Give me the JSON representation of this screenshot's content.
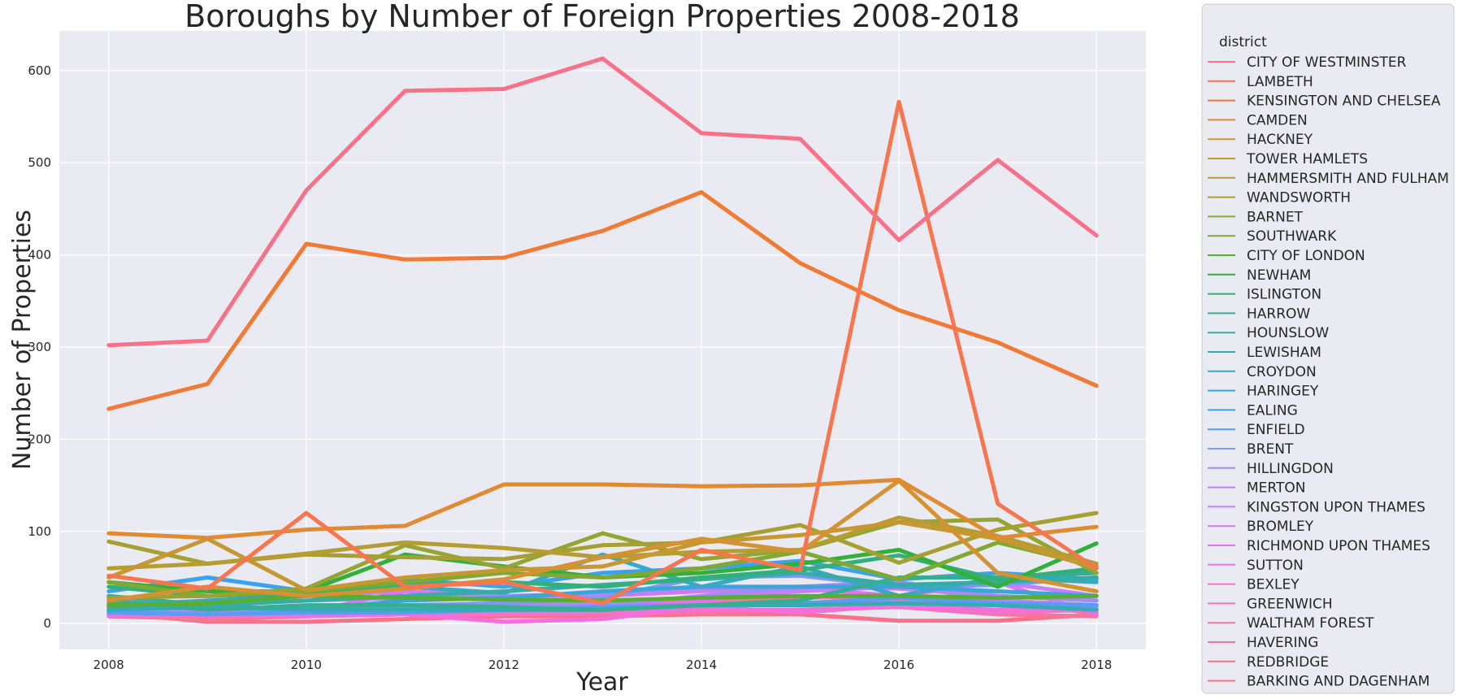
{
  "chart_data": {
    "type": "line",
    "title": "Boroughs by Number of Foreign Properties 2008-2018",
    "xlabel": "Year",
    "ylabel": "Number of Properties",
    "x": [
      2008,
      2009,
      2010,
      2011,
      2012,
      2013,
      2014,
      2015,
      2016,
      2017,
      2018
    ],
    "xlim": [
      2007.5,
      2018.5
    ],
    "ylim": [
      -28,
      643
    ],
    "xticks": [
      2008,
      2010,
      2012,
      2014,
      2016,
      2018
    ],
    "yticks": [
      0,
      100,
      200,
      300,
      400,
      500,
      600
    ],
    "grid": true,
    "legend": {
      "title": "district",
      "placement": "outside-right"
    },
    "series": [
      {
        "name": "CITY OF WESTMINSTER",
        "color": "#f77189",
        "values": [
          302,
          307,
          470,
          578,
          580,
          613,
          532,
          526,
          416,
          503,
          421
        ]
      },
      {
        "name": "LAMBETH",
        "color": "#f7754f",
        "values": [
          52,
          38,
          120,
          40,
          45,
          22,
          80,
          58,
          566,
          130,
          60
        ]
      },
      {
        "name": "KENSINGTON AND CHELSEA",
        "color": "#f17a36",
        "values": [
          233,
          260,
          412,
          395,
          397,
          426,
          468,
          391,
          340,
          305,
          258
        ]
      },
      {
        "name": "CAMDEN",
        "color": "#e08b31",
        "values": [
          98,
          93,
          102,
          106,
          151,
          151,
          149,
          150,
          156,
          93,
          105
        ]
      },
      {
        "name": "HACKNEY",
        "color": "#d49232",
        "values": [
          25,
          40,
          30,
          38,
          48,
          72,
          92,
          78,
          155,
          55,
          35
        ]
      },
      {
        "name": "TOWER HAMLETS",
        "color": "#c79732",
        "values": [
          50,
          92,
          36,
          50,
          58,
          62,
          88,
          96,
          110,
          92,
          60
        ]
      },
      {
        "name": "HAMMERSMITH AND FULHAM",
        "color": "#b69d32",
        "values": [
          60,
          65,
          76,
          88,
          82,
          72,
          78,
          80,
          115,
          95,
          65
        ]
      },
      {
        "name": "WANDSWORTH",
        "color": "#a6a032",
        "values": [
          89,
          65,
          75,
          72,
          70,
          85,
          88,
          107,
          66,
          102,
          120
        ]
      },
      {
        "name": "BARNET",
        "color": "#95a432",
        "values": [
          28,
          30,
          38,
          85,
          60,
          98,
          70,
          80,
          110,
          113,
          55
        ]
      },
      {
        "name": "SOUTHWARK",
        "color": "#7fa932",
        "values": [
          45,
          30,
          35,
          45,
          55,
          50,
          60,
          78,
          48,
          88,
          62
        ]
      },
      {
        "name": "CITY OF LONDON",
        "color": "#58ae31",
        "values": [
          20,
          22,
          30,
          28,
          26,
          25,
          28,
          30,
          30,
          28,
          30
        ]
      },
      {
        "name": "NEWHAM",
        "color": "#33b03a",
        "values": [
          45,
          35,
          35,
          75,
          62,
          50,
          55,
          65,
          80,
          40,
          87
        ]
      },
      {
        "name": "ISLINGTON",
        "color": "#33b07a",
        "values": [
          40,
          30,
          33,
          42,
          45,
          40,
          50,
          58,
          74,
          48,
          60
        ]
      },
      {
        "name": "HARROW",
        "color": "#35ae92",
        "values": [
          25,
          15,
          20,
          20,
          18,
          15,
          20,
          25,
          50,
          50,
          55
        ]
      },
      {
        "name": "HOUNSLOW",
        "color": "#36ada4",
        "values": [
          30,
          20,
          25,
          30,
          35,
          42,
          48,
          55,
          42,
          45,
          50
        ]
      },
      {
        "name": "LEWISHAM",
        "color": "#37abb5",
        "values": [
          15,
          18,
          15,
          15,
          15,
          15,
          20,
          20,
          22,
          20,
          15
        ]
      },
      {
        "name": "CROYDON",
        "color": "#38a9c5",
        "values": [
          18,
          25,
          30,
          40,
          33,
          75,
          40,
          62,
          30,
          50,
          45
        ]
      },
      {
        "name": "HARINGEY",
        "color": "#3aa6d8",
        "values": [
          22,
          20,
          15,
          25,
          28,
          35,
          40,
          40,
          40,
          35,
          30
        ]
      },
      {
        "name": "EALING",
        "color": "#3ba3ec",
        "values": [
          35,
          50,
          35,
          48,
          40,
          55,
          60,
          68,
          48,
          55,
          48
        ]
      },
      {
        "name": "ENFIELD",
        "color": "#5a9bf3",
        "values": [
          12,
          10,
          12,
          12,
          15,
          18,
          20,
          22,
          28,
          22,
          20
        ]
      },
      {
        "name": "BRENT",
        "color": "#8296f5",
        "values": [
          20,
          15,
          18,
          20,
          22,
          28,
          50,
          52,
          40,
          42,
          50
        ]
      },
      {
        "name": "HILLINGDON",
        "color": "#a08df4",
        "values": [
          15,
          12,
          18,
          15,
          20,
          20,
          30,
          40,
          45,
          30,
          25
        ]
      },
      {
        "name": "MERTON",
        "color": "#b586f4",
        "values": [
          25,
          20,
          25,
          28,
          30,
          32,
          38,
          40,
          42,
          25,
          20
        ]
      },
      {
        "name": "KINGSTON UPON THAMES",
        "color": "#c77ff4",
        "values": [
          10,
          15,
          10,
          12,
          15,
          25,
          28,
          35,
          40,
          45,
          30
        ]
      },
      {
        "name": "BROMLEY",
        "color": "#d877f1",
        "values": [
          20,
          25,
          30,
          35,
          30,
          30,
          35,
          40,
          38,
          30,
          25
        ]
      },
      {
        "name": "RICHMOND UPON THAMES",
        "color": "#e86ff0",
        "values": [
          15,
          20,
          12,
          35,
          30,
          20,
          25,
          38,
          30,
          45,
          10
        ]
      },
      {
        "name": "SUTTON",
        "color": "#f46fde",
        "values": [
          12,
          10,
          10,
          10,
          2,
          5,
          18,
          12,
          20,
          15,
          18
        ]
      },
      {
        "name": "BEXLEY",
        "color": "#f571cc",
        "values": [
          8,
          10,
          8,
          10,
          10,
          12,
          15,
          15,
          18,
          12,
          15
        ]
      },
      {
        "name": "GREENWICH",
        "color": "#f672bb",
        "values": [
          20,
          8,
          12,
          18,
          20,
          18,
          22,
          20,
          25,
          20,
          15
        ]
      },
      {
        "name": "WALTHAM FOREST",
        "color": "#f674ab",
        "values": [
          15,
          10,
          15,
          18,
          22,
          25,
          25,
          28,
          30,
          25,
          20
        ]
      },
      {
        "name": "HAVERING",
        "color": "#f6759b",
        "values": [
          8,
          5,
          8,
          10,
          12,
          10,
          12,
          15,
          18,
          10,
          8
        ]
      },
      {
        "name": "REDBRIDGE",
        "color": "#f77189",
        "values": [
          10,
          12,
          10,
          12,
          15,
          15,
          18,
          22,
          25,
          20,
          12
        ]
      },
      {
        "name": "BARKING AND DAGENHAM",
        "color": "#f77189",
        "values": [
          12,
          2,
          2,
          5,
          8,
          8,
          10,
          10,
          3,
          3,
          10
        ]
      }
    ]
  }
}
